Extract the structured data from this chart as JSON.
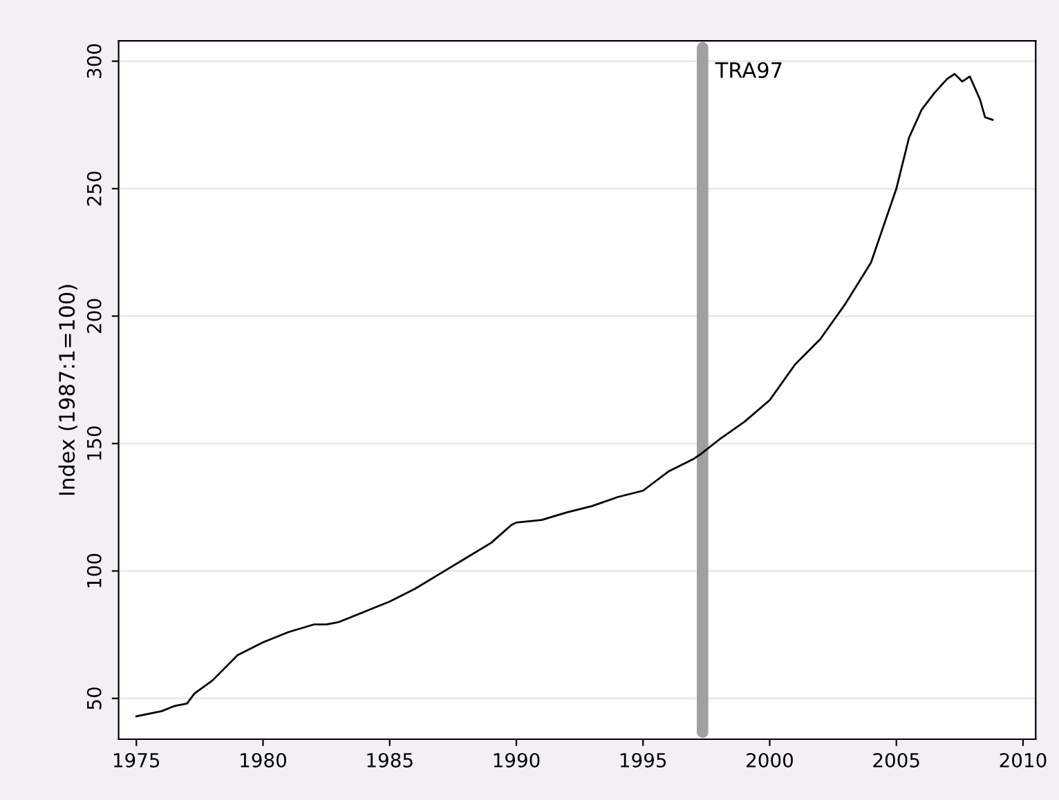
{
  "chart_data": {
    "type": "line",
    "ylabel": "Index (1987:1=100)",
    "x": [
      1975.0,
      1975.5,
      1976.0,
      1976.5,
      1977.0,
      1977.3,
      1978.0,
      1979.0,
      1980.0,
      1981.0,
      1982.0,
      1982.5,
      1983.0,
      1984.0,
      1985.0,
      1986.0,
      1987.0,
      1988.0,
      1989.0,
      1989.8,
      1990.0,
      1991.0,
      1992.0,
      1993.0,
      1994.0,
      1995.0,
      1996.0,
      1997.0,
      1997.3,
      1998.0,
      1999.0,
      2000.0,
      2001.0,
      2002.0,
      2003.0,
      2004.0,
      2005.0,
      2005.5,
      2006.0,
      2006.5,
      2007.0,
      2007.3,
      2007.6,
      2007.9,
      2008.3,
      2008.5,
      2008.8
    ],
    "series": [
      {
        "color": "#000000",
        "values": [
          43,
          44,
          45,
          47,
          48,
          52,
          57,
          67,
          72,
          76,
          79,
          79,
          80,
          84,
          88,
          93,
          99,
          105,
          111,
          118,
          119,
          120,
          123,
          125.5,
          129,
          131.5,
          139,
          144,
          146,
          151.5,
          158.5,
          167,
          181,
          191,
          205,
          221,
          250,
          270,
          281,
          287.5,
          293,
          295,
          292,
          294,
          285,
          278,
          277
        ]
      }
    ],
    "xlim": [
      1974.3,
      2010.5
    ],
    "ylim": [
      34,
      308
    ],
    "xticks": [
      1975,
      1980,
      1985,
      1990,
      1995,
      2000,
      2005,
      2010
    ],
    "yticks": [
      50,
      100,
      150,
      200,
      250,
      300
    ],
    "grid": "y",
    "marker": "none",
    "line_style": "solid",
    "ref_lines": [
      {
        "axis": "x",
        "value": 1997.35,
        "label": "TRA97",
        "color": "#a0a0a0"
      }
    ]
  }
}
